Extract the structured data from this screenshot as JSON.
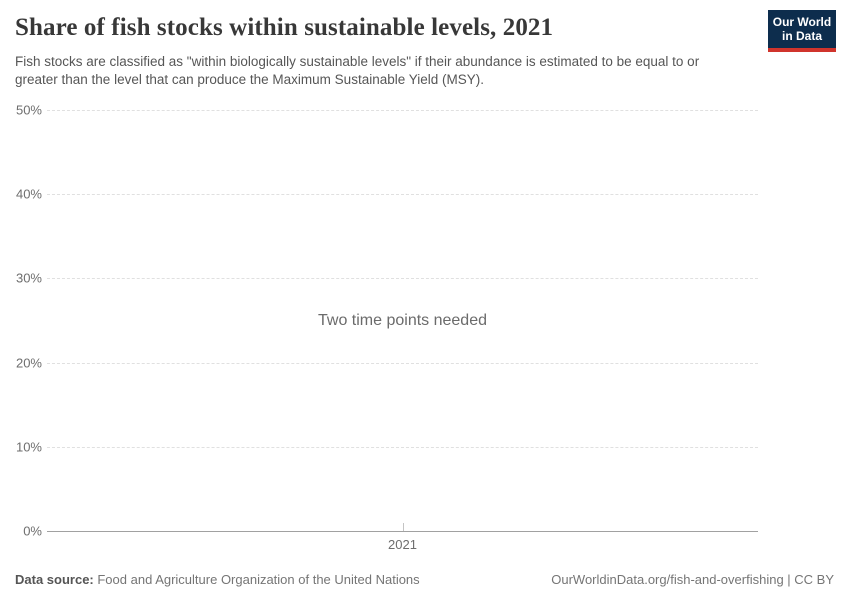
{
  "header": {
    "title": "Share of fish stocks within sustainable levels, 2021",
    "subtitle": "Fish stocks are classified as \"within biologically sustainable levels\" if their abundance is estimated to be equal to or greater than the level that can produce the Maximum Sustainable Yield (MSY).",
    "logo": {
      "line1": "Our World",
      "line2": "in Data"
    }
  },
  "chart_data": {
    "type": "line",
    "title": "Share of fish stocks within sustainable levels, 2021",
    "series": [],
    "empty_state_message": "Two time points needed",
    "xlabel": "",
    "ylabel": "",
    "ylim": [
      0,
      50
    ],
    "xlim": [
      2020.5,
      2021.5
    ],
    "yticks": [
      {
        "value": 0,
        "label": "0%"
      },
      {
        "value": 10,
        "label": "10%"
      },
      {
        "value": 20,
        "label": "20%"
      },
      {
        "value": 30,
        "label": "30%"
      },
      {
        "value": 40,
        "label": "40%"
      },
      {
        "value": 50,
        "label": "50%"
      }
    ],
    "xticks": [
      {
        "value": 2021,
        "label": "2021"
      }
    ],
    "grid": "dashed-horizontal",
    "legend": "none"
  },
  "footer": {
    "source_label": "Data source:",
    "source_text": " Food and Agriculture Organization of the United Nations",
    "attribution": "OurWorldinData.org/fish-and-overfishing | CC BY"
  },
  "colors": {
    "title": "#383838",
    "subtitle": "#565656",
    "tick_labels": "#6e6e6e",
    "gridline": "#e0e0e0",
    "axis_line": "#a1a1a1",
    "tick_mark": "#c4c4c4",
    "message": "#6b6b6b",
    "footer_text": "#757575",
    "footer_label": "#555555",
    "logo_navy": "#0d2d4d",
    "logo_red": "#d0342c"
  }
}
